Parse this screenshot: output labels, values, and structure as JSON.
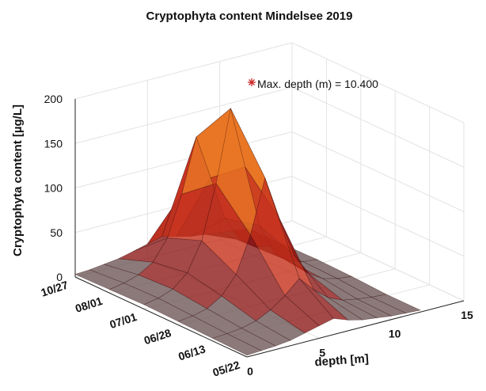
{
  "chart_data": {
    "type": "surface",
    "title": "Cryptophyta content Mindelsee 2019",
    "xlabel": "depth [m]",
    "ylabel": "",
    "zlabel": "Cryptophyta content [µg/L]",
    "x_ticks": [
      "0",
      "5",
      "10",
      "15"
    ],
    "y_ticks": [
      "05/22",
      "06/13",
      "06/28",
      "07/01",
      "08/01",
      "10/27"
    ],
    "z_ticks": [
      "0",
      "50",
      "100",
      "150",
      "200"
    ],
    "xlim": [
      0,
      15
    ],
    "zlim": [
      0,
      200
    ],
    "grid": true,
    "colormap": "hot",
    "annotation": {
      "text": "Max. depth (m) = 10.400",
      "marker": "asterisk",
      "marker_color": "#cc2b2b"
    },
    "depths": [
      0,
      1,
      2,
      3,
      4,
      5,
      6,
      7,
      8,
      9,
      10,
      11,
      12
    ],
    "dates": [
      "05/22",
      "06/13",
      "06/28",
      "07/01",
      "08/01",
      "10/27"
    ],
    "values": [
      [
        2,
        3,
        4,
        6,
        10,
        14,
        18,
        12,
        8,
        6,
        4,
        3,
        2
      ],
      [
        3,
        4,
        6,
        10,
        18,
        30,
        45,
        28,
        15,
        8,
        5,
        3,
        2
      ],
      [
        4,
        6,
        10,
        20,
        40,
        80,
        140,
        90,
        45,
        20,
        10,
        6,
        4
      ],
      [
        5,
        8,
        14,
        28,
        60,
        120,
        200,
        130,
        60,
        25,
        12,
        7,
        5
      ],
      [
        4,
        7,
        12,
        22,
        45,
        90,
        150,
        100,
        50,
        22,
        10,
        6,
        4
      ],
      [
        3,
        4,
        6,
        8,
        12,
        16,
        20,
        16,
        12,
        10,
        8,
        6,
        4
      ]
    ]
  }
}
